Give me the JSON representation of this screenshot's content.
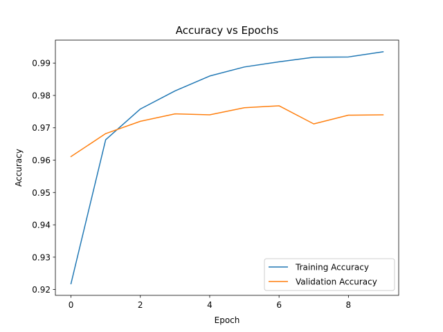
{
  "chart_data": {
    "type": "line",
    "title": "Accuracy vs Epochs",
    "xlabel": "Epoch",
    "ylabel": "Accuracy",
    "x": [
      0,
      1,
      2,
      3,
      4,
      5,
      6,
      7,
      8,
      9
    ],
    "xlim": [
      -0.45,
      9.45
    ],
    "ylim": [
      0.9182,
      0.9971
    ],
    "xticks": [
      0,
      2,
      4,
      6,
      8
    ],
    "yticks": [
      0.92,
      0.93,
      0.94,
      0.95,
      0.96,
      0.97,
      0.98,
      0.99
    ],
    "ytick_labels": [
      "0.92",
      "0.93",
      "0.94",
      "0.95",
      "0.96",
      "0.97",
      "0.98",
      "0.99"
    ],
    "grid": false,
    "legend_position": "lower-right",
    "series": [
      {
        "name": "Training Accuracy",
        "color": "#1f77b4",
        "values": [
          0.9218,
          0.9663,
          0.9758,
          0.9814,
          0.986,
          0.9888,
          0.9904,
          0.9918,
          0.9919,
          0.9935
        ]
      },
      {
        "name": "Validation Accuracy",
        "color": "#ff7f0e",
        "values": [
          0.9611,
          0.9682,
          0.972,
          0.9743,
          0.974,
          0.9762,
          0.9768,
          0.9712,
          0.9739,
          0.974
        ]
      }
    ]
  }
}
